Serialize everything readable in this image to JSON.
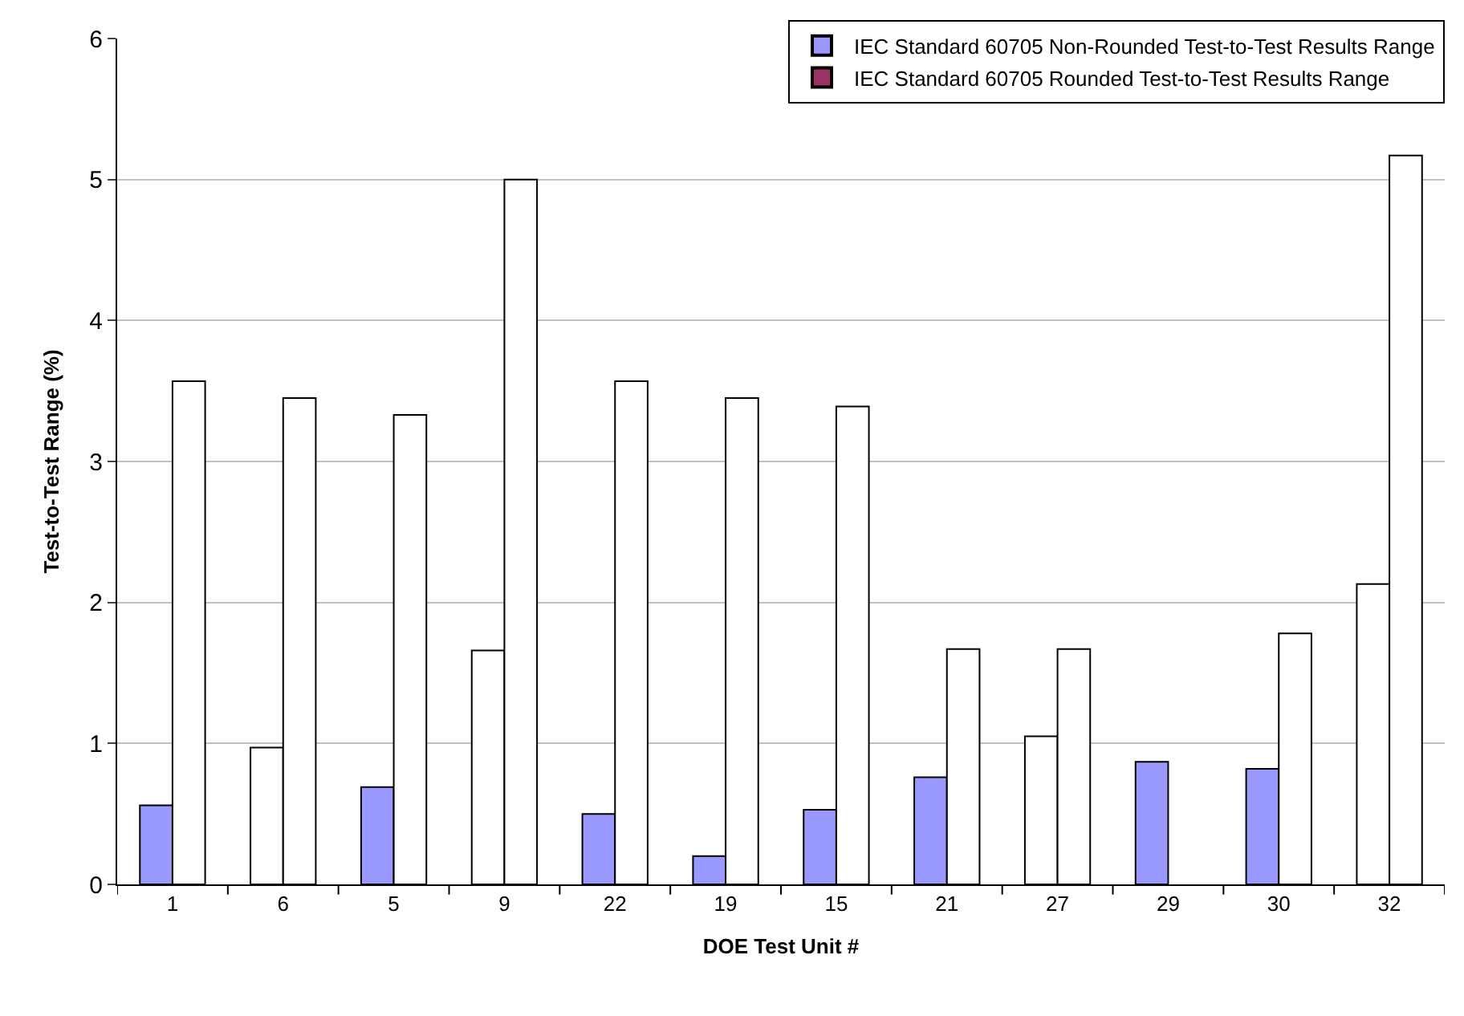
{
  "chart_data": {
    "type": "bar",
    "xlabel": "DOE Test Unit #",
    "ylabel": "Test-to-Test Range (%)",
    "categories": [
      "1",
      "6",
      "5",
      "9",
      "22",
      "19",
      "15",
      "21",
      "27",
      "29",
      "30",
      "32"
    ],
    "series": [
      {
        "name": "IEC Standard 60705 Non-Rounded Test-to-Test Results Range",
        "color": "#9999ff",
        "colors": [
          "#9999ff",
          "#ffffff",
          "#9999ff",
          "#ffffff",
          "#9999ff",
          "#9999ff",
          "#9999ff",
          "#9999ff",
          "#ffffff",
          "#9999ff",
          "#9999ff",
          "#ffffff"
        ],
        "values": [
          0.56,
          0.97,
          0.69,
          1.66,
          0.5,
          0.2,
          0.53,
          0.76,
          1.05,
          0.87,
          0.82,
          2.13
        ]
      },
      {
        "name": "IEC Standard 60705 Rounded Test-to-Test Results Range",
        "color": "#993366",
        "colors": [
          "#ffffff",
          "#ffffff",
          "#ffffff",
          "#ffffff",
          "#ffffff",
          "#ffffff",
          "#ffffff",
          "#ffffff",
          "#ffffff",
          "#ffffff",
          "#ffffff",
          "#ffffff"
        ],
        "values": [
          3.57,
          3.45,
          3.33,
          5.0,
          3.57,
          3.45,
          3.39,
          1.67,
          1.67,
          null,
          1.78,
          5.17
        ]
      }
    ],
    "ylim": [
      0,
      6
    ],
    "yticks": [
      0,
      1,
      2,
      3,
      4,
      5,
      6
    ],
    "grid": "y",
    "legend": "top right"
  }
}
